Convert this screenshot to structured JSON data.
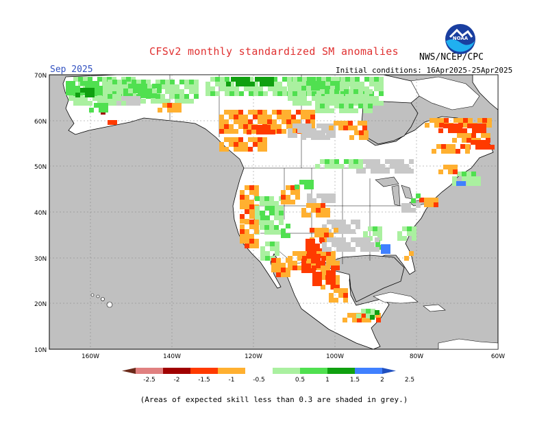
{
  "title": "CFSv2 monthly standardized SM anomalies",
  "agency": "NWS/NCEP/CPC",
  "logo_text": "NOAA",
  "valid_month": "Sep 2025",
  "initial_conditions": "Initial conditions: 16Apr2025-25Apr2025",
  "footnote": "(Areas of expected skill less than 0.3 are shaded in grey.)",
  "colors": {
    "ocean": "#c0c0c0",
    "land": "#ffffff",
    "no_skill": "#c8c8c8"
  },
  "axes": {
    "lon_labels": [
      "160W",
      "140W",
      "120W",
      "100W",
      "80W",
      "60W"
    ],
    "lat_labels": [
      "70N",
      "60N",
      "50N",
      "40N",
      "30N",
      "20N",
      "10N"
    ]
  },
  "legend": {
    "labels": [
      "-2.5",
      "-2",
      "-1.5",
      "-1",
      "-0.5",
      "0.5",
      "1",
      "1.5",
      "2",
      "2.5"
    ],
    "colors": [
      "#6b2a1a",
      "#e08080",
      "#a00000",
      "#ff3a00",
      "#ffb030",
      "#ffffff",
      "#aaf0a0",
      "#50e050",
      "#10a010",
      "#4080ff",
      "#2050c0"
    ]
  }
}
